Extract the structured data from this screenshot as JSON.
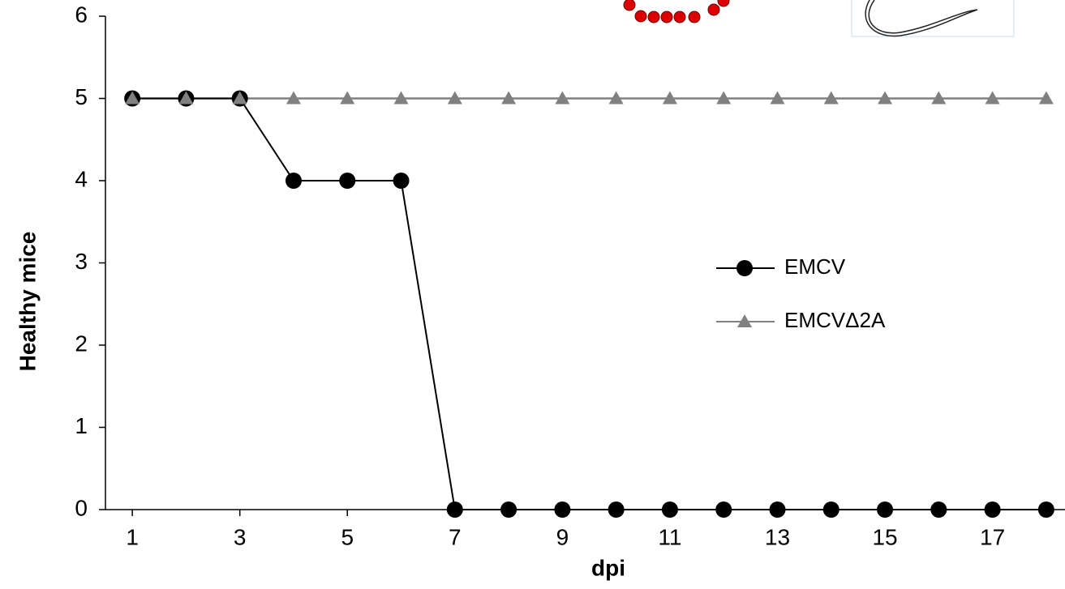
{
  "chart_data": {
    "type": "line",
    "x_label": "dpi",
    "y_label": "Healthy mice",
    "x": [
      1,
      2,
      3,
      4,
      5,
      6,
      7,
      8,
      9,
      10,
      11,
      12,
      13,
      14,
      15,
      16,
      17,
      18
    ],
    "series": [
      {
        "name": "EMCV",
        "color": "#000000",
        "marker": "circle",
        "values": [
          5,
          5,
          5,
          4,
          4,
          4,
          0,
          0,
          0,
          0,
          0,
          0,
          0,
          0,
          0,
          0,
          0,
          0
        ]
      },
      {
        "name": "EMCVΔ2A",
        "color": "#808080",
        "marker": "triangle",
        "values": [
          5,
          5,
          5,
          5,
          5,
          5,
          5,
          5,
          5,
          5,
          5,
          5,
          5,
          5,
          5,
          5,
          5,
          5
        ]
      }
    ],
    "xlim": [
      0.5,
      18.5
    ],
    "xticks": [
      1,
      3,
      5,
      7,
      9,
      11,
      13,
      15,
      17
    ],
    "ylim": [
      0,
      6
    ],
    "yticks": [
      0,
      1,
      2,
      3,
      4,
      5,
      6
    ]
  }
}
